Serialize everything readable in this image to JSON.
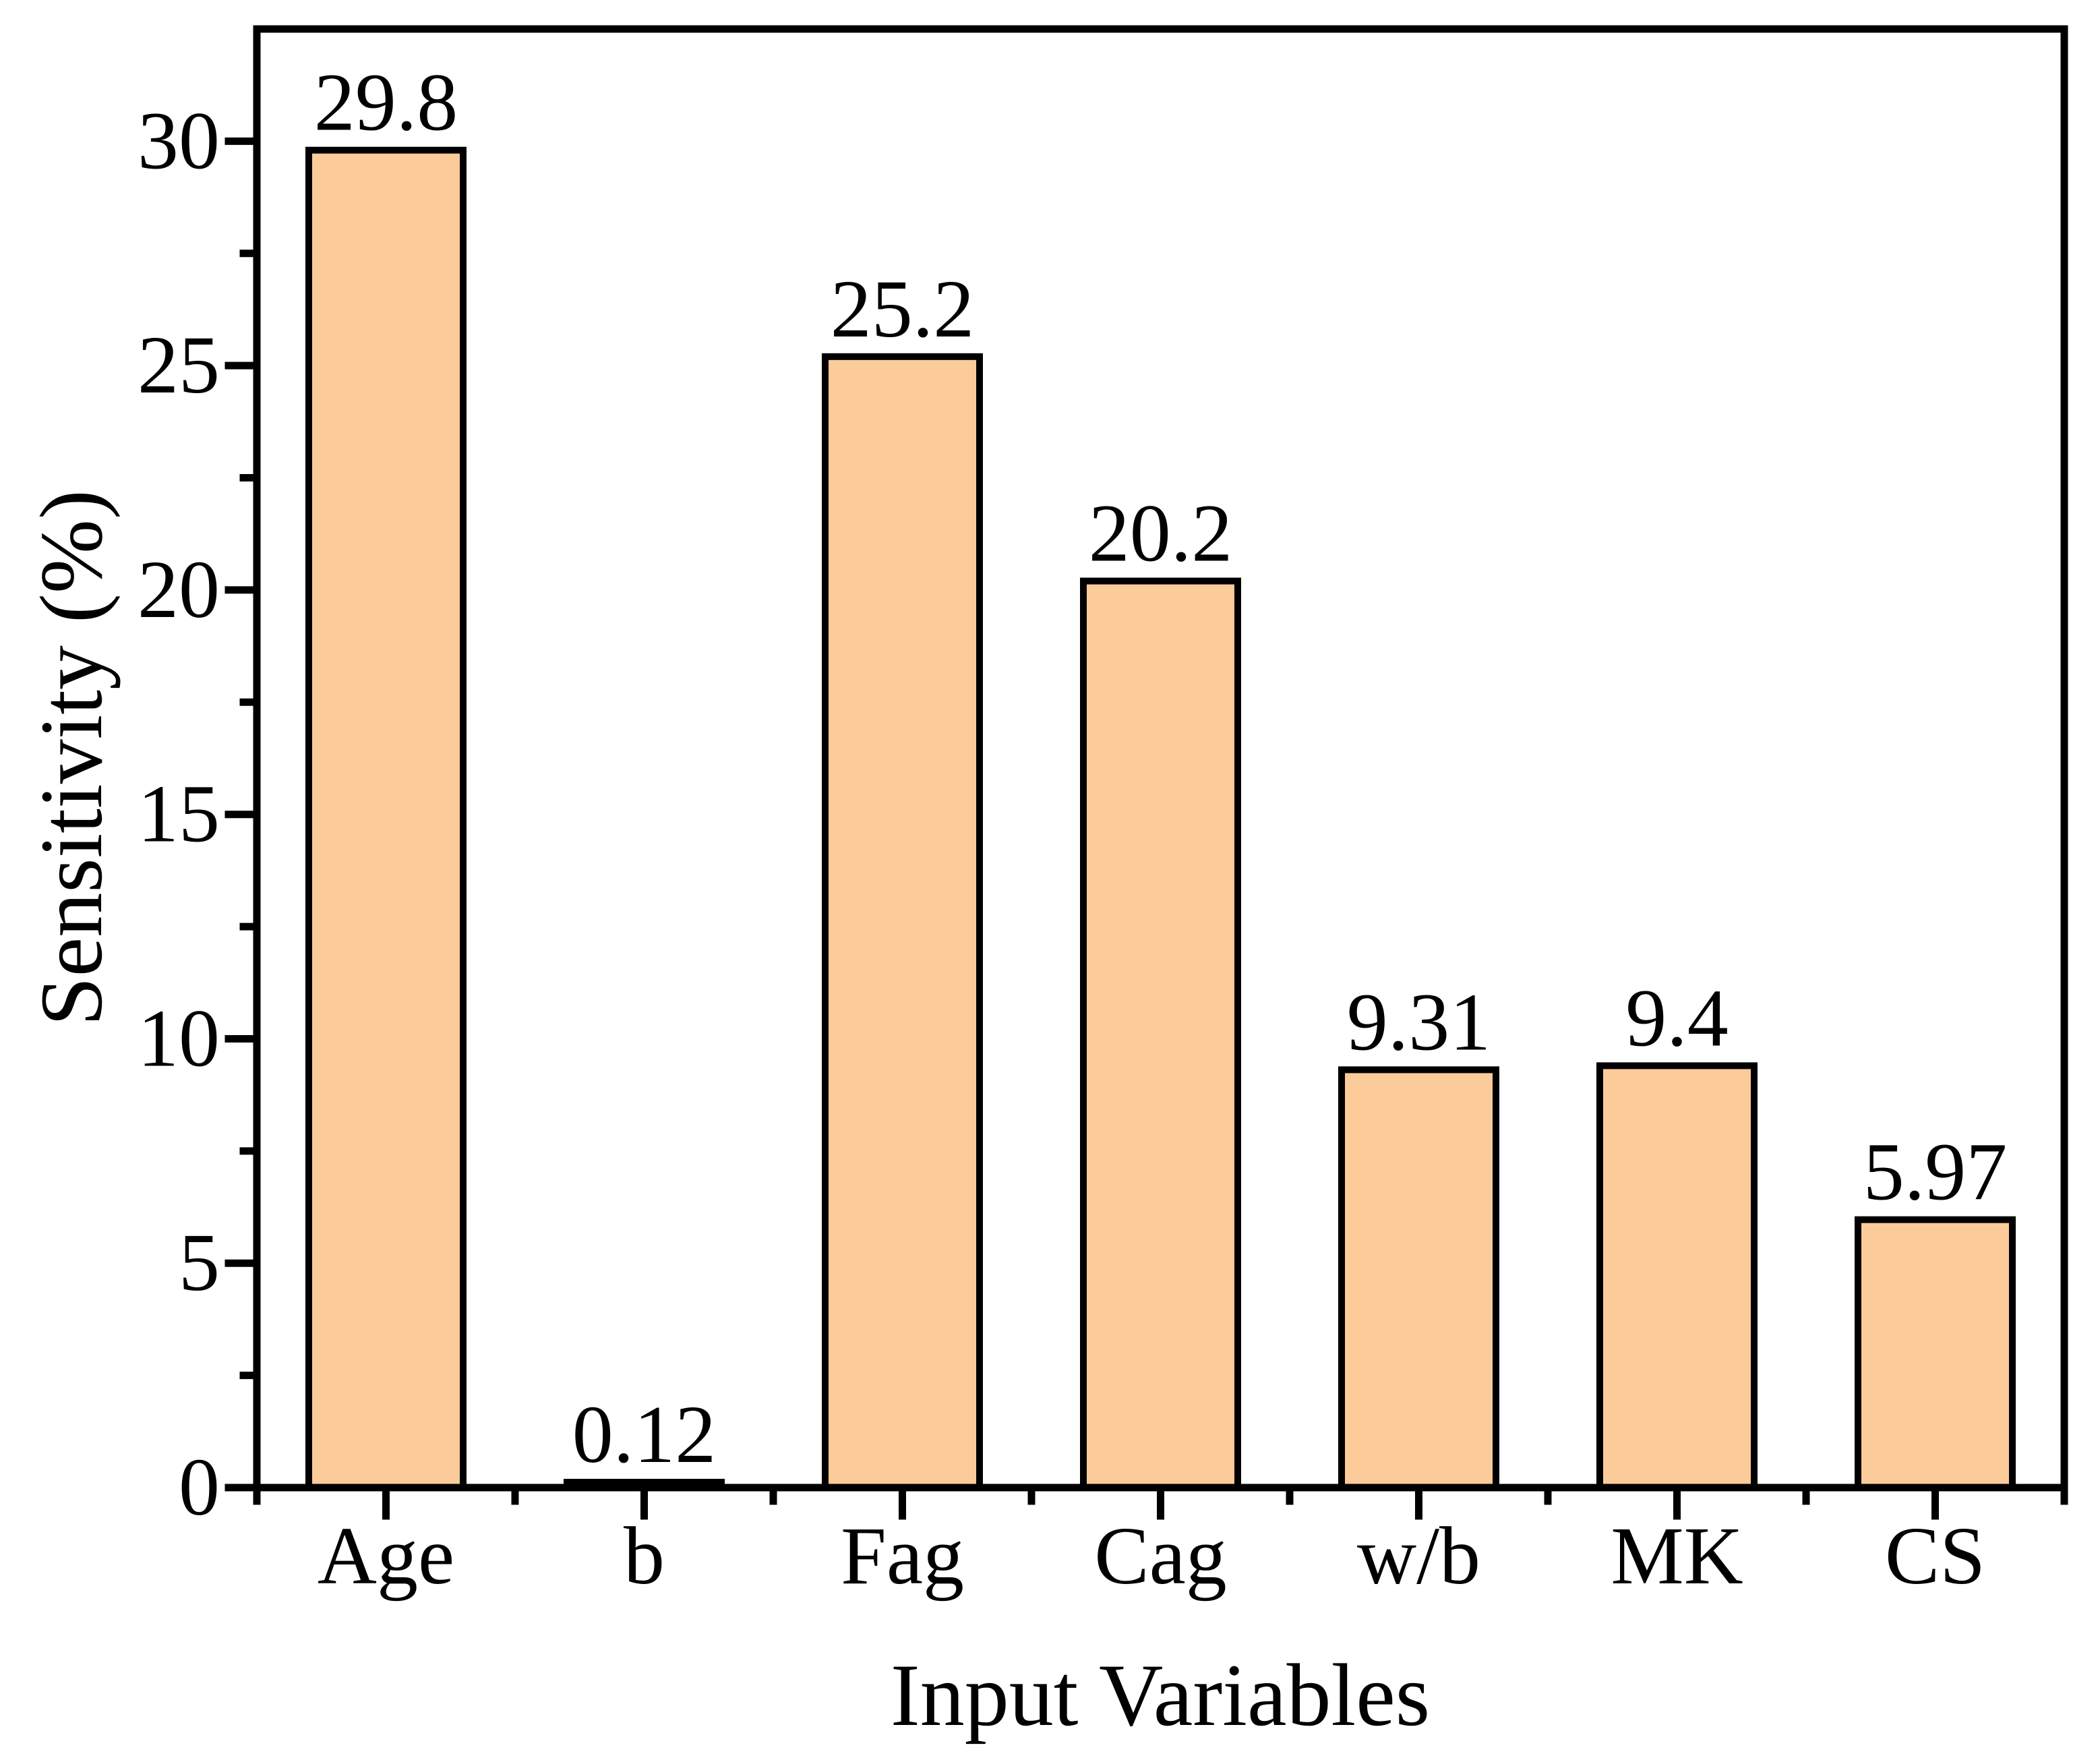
{
  "chart_data": {
    "type": "bar",
    "categories": [
      "Age",
      "b",
      "Fag",
      "Cag",
      "w/b",
      "MK",
      "CS"
    ],
    "values": [
      29.8,
      0.12,
      25.2,
      20.2,
      9.31,
      9.4,
      5.97
    ],
    "value_labels": [
      "29.8",
      "0.12",
      "25.2",
      "20.2",
      "9.31",
      "9.4",
      "5.97"
    ],
    "title": "",
    "xlabel": "Input Variables",
    "ylabel": "Sensitivity (%)",
    "ylim": [
      0,
      32.5
    ],
    "yticks_major": [
      0,
      5,
      10,
      15,
      20,
      25,
      30
    ],
    "ytick_labels": [
      "0",
      "5",
      "10",
      "15",
      "20",
      "25",
      "30"
    ],
    "ytick_minor_step": 2.5,
    "grid": "off",
    "legend": "none",
    "bar_fill": "#FCCB9A",
    "bar_stroke": "#000000",
    "axis_color": "#000000",
    "text_color": "#000000",
    "background": "#FFFFFF"
  }
}
